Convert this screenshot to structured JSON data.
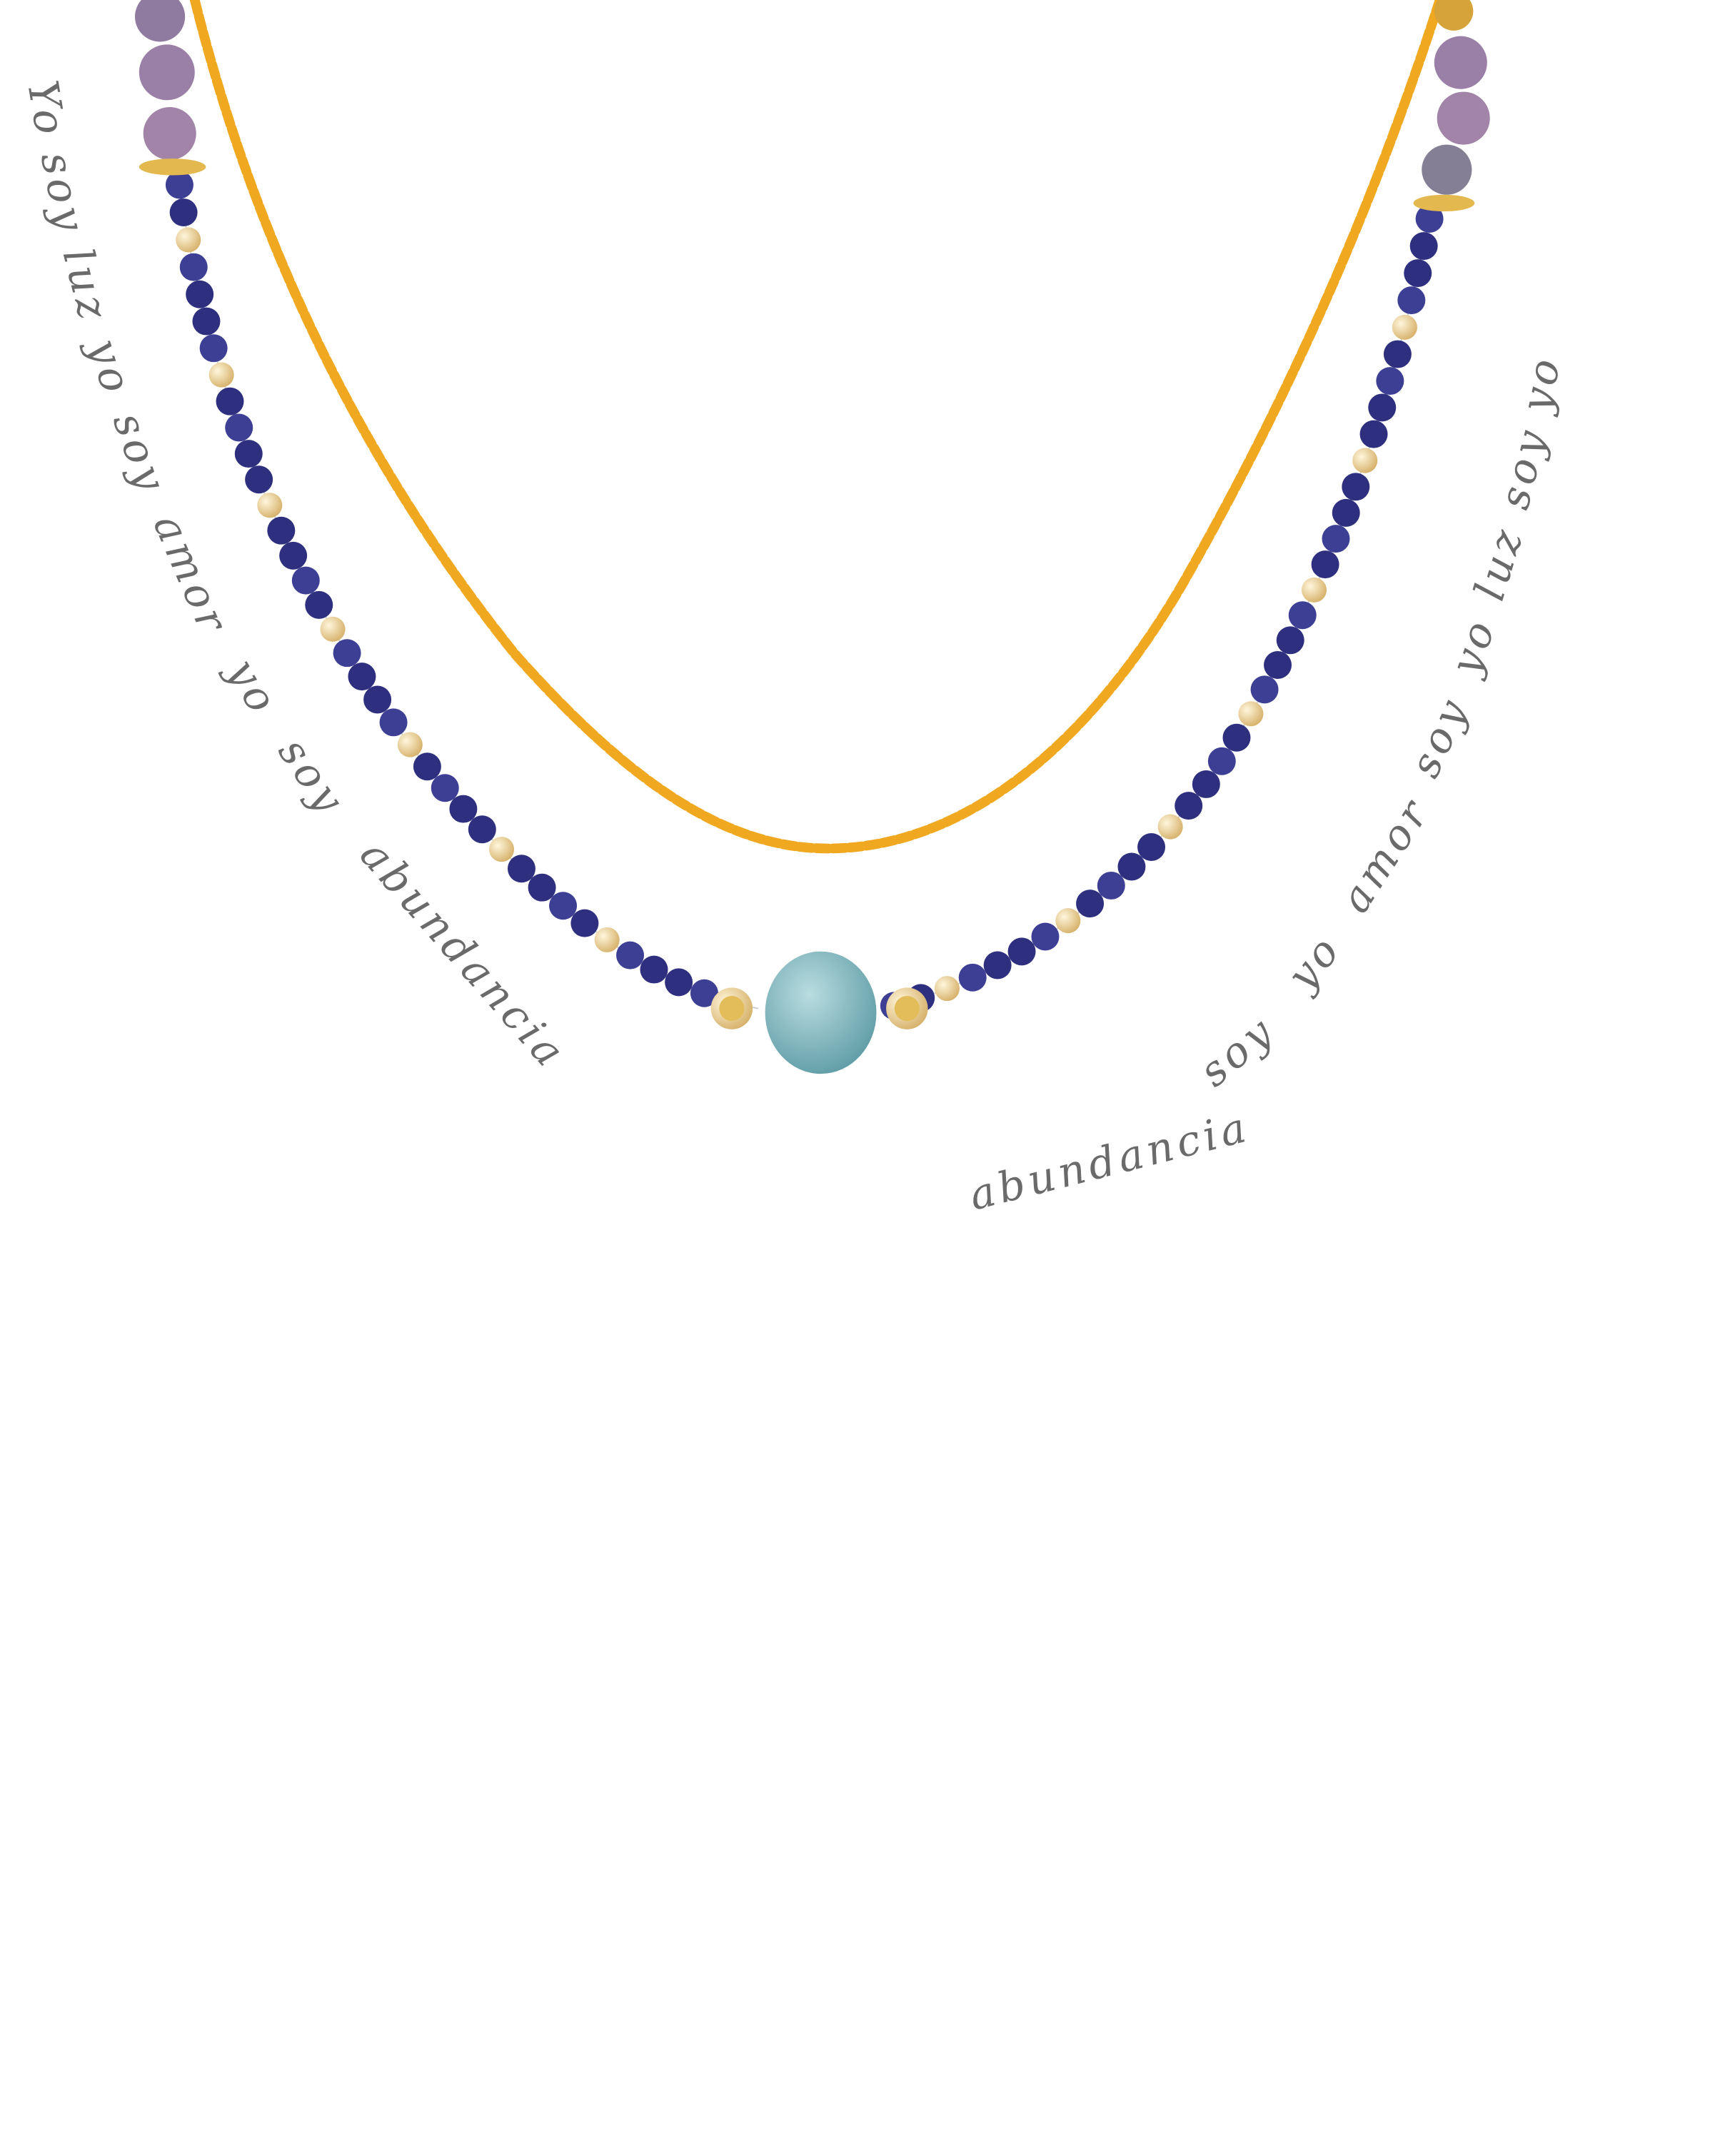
{
  "left_text": "Yo soy luz yo soy amor yo soy abundancia",
  "right_text": "abundancia soy yo amor soy yo luz soy yo",
  "colors": {
    "background": "#ffffff",
    "gold_chain": "#f0a820",
    "gold_bead": "#e8cf8f",
    "blue_bead": "#2e2f7e",
    "purple_bead": "#9a7fa6",
    "center_stone": "#7fb7bd",
    "text": "#6a6a6a"
  }
}
